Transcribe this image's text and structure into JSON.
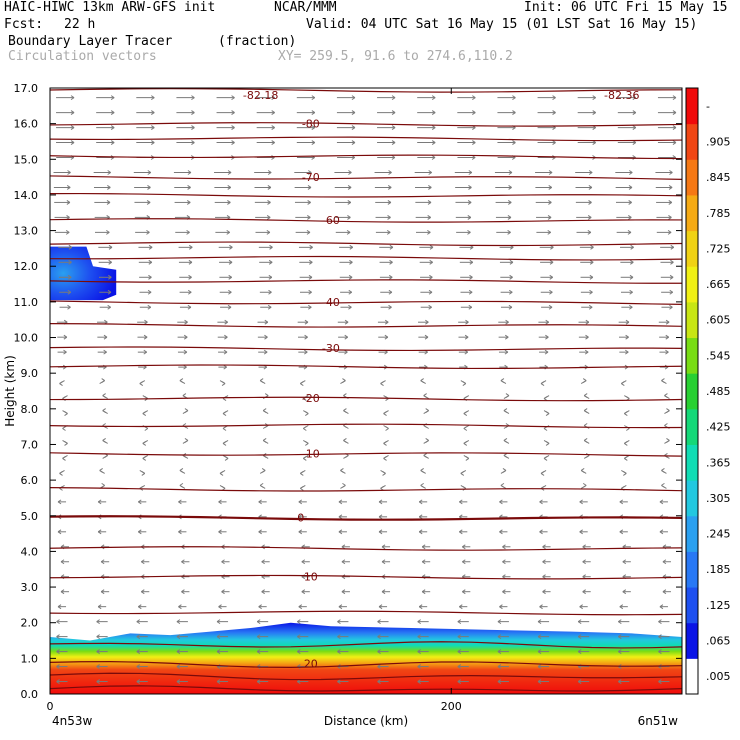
{
  "header": {
    "model": "HAIC-HIWC 13km ARW-GFS init",
    "org": "NCAR/MMM",
    "init": "Init: 06 UTC Fri 15 May 15",
    "fcst_label": "Fcst:",
    "fcst_value": "22 h",
    "valid": "Valid: 04 UTC Sat 16 May 15 (01 LST Sat 16 May 15)",
    "field": "Boundary Layer Tracer",
    "field_units": "(fraction)",
    "vectors": "Circulation vectors",
    "xy": "XY= 259.5, 91.6 to 274.6,110.2"
  },
  "chart_data": {
    "type": "heatmap",
    "ylabel": "Height (km)",
    "xlabel": "Distance (km)",
    "x_left_label": "4n53w",
    "x_right_label": "6n51w",
    "xlim": [
      0,
      315
    ],
    "ylim": [
      0,
      17
    ],
    "x_ticks": [
      {
        "value": 0,
        "label": "0"
      },
      {
        "value": 200,
        "label": "200"
      }
    ],
    "y_ticks": [
      "0.0",
      "1.0",
      "2.0",
      "3.0",
      "4.0",
      "5.0",
      "6.0",
      "7.0",
      "8.0",
      "9.0",
      "10.0",
      "11.0",
      "12.0",
      "13.0",
      "14.0",
      "15.0",
      "16.0",
      "17.0"
    ],
    "colorbar_labels": [
      ".005",
      ".065",
      ".125",
      ".185",
      ".245",
      ".305",
      ".365",
      ".425",
      ".485",
      ".545",
      ".605",
      ".665",
      ".725",
      ".785",
      ".845",
      ".905",
      "-"
    ],
    "colorbar_colors": [
      "#ffffff",
      "#0a14e6",
      "#1e50f0",
      "#2878f5",
      "#2aa0f0",
      "#22c8e0",
      "#10dcb4",
      "#14d878",
      "#28d032",
      "#78dc14",
      "#c8e614",
      "#f0f014",
      "#f0d214",
      "#f5aa14",
      "#f57814",
      "#f04614",
      "#f00a0a"
    ],
    "isotherms": [
      {
        "label": "20",
        "height": 0.85,
        "x": 130
      },
      {
        "label": "10",
        "height": 3.3,
        "x": 130
      },
      {
        "label": "0",
        "height": 4.95,
        "x": 125
      },
      {
        "label": "-10",
        "height": 6.75,
        "x": 130
      },
      {
        "label": "-20",
        "height": 8.3,
        "x": 130
      },
      {
        "label": "-30",
        "height": 9.7,
        "x": 140
      },
      {
        "label": "-40",
        "height": 11.0,
        "x": 140
      },
      {
        "label": "-60",
        "height": 13.3,
        "x": 140
      },
      {
        "label": "-70",
        "height": 14.5,
        "x": 130
      },
      {
        "label": "-80",
        "height": 16.0,
        "x": 130
      }
    ],
    "isotherm_heights": [
      0.15,
      0.5,
      0.85,
      1.4,
      2.3,
      3.3,
      4.1,
      4.95,
      5.75,
      6.75,
      7.55,
      8.3,
      9.2,
      9.7,
      10.35,
      11.0,
      11.6,
      12.25,
      12.65,
      13.3,
      14.0,
      14.5,
      15.1,
      15.6,
      16.0,
      16.95
    ],
    "min_labels": [
      {
        "label": "-82.18",
        "x": 98,
        "height": 16.75
      },
      {
        "label": "-82.36",
        "x": 278,
        "height": 16.75
      }
    ],
    "pbl_top": [
      [
        0,
        1.6
      ],
      [
        20,
        1.5
      ],
      [
        40,
        1.7
      ],
      [
        60,
        1.65
      ],
      [
        80,
        1.75
      ],
      [
        100,
        1.85
      ],
      [
        120,
        2.0
      ],
      [
        140,
        1.9
      ],
      [
        180,
        1.85
      ],
      [
        220,
        1.8
      ],
      [
        260,
        1.75
      ],
      [
        290,
        1.7
      ],
      [
        315,
        1.6
      ]
    ],
    "upper_blob": {
      "x_max": 33,
      "ymin": 11.05,
      "ymax": 12.55,
      "value": 0.065
    }
  }
}
